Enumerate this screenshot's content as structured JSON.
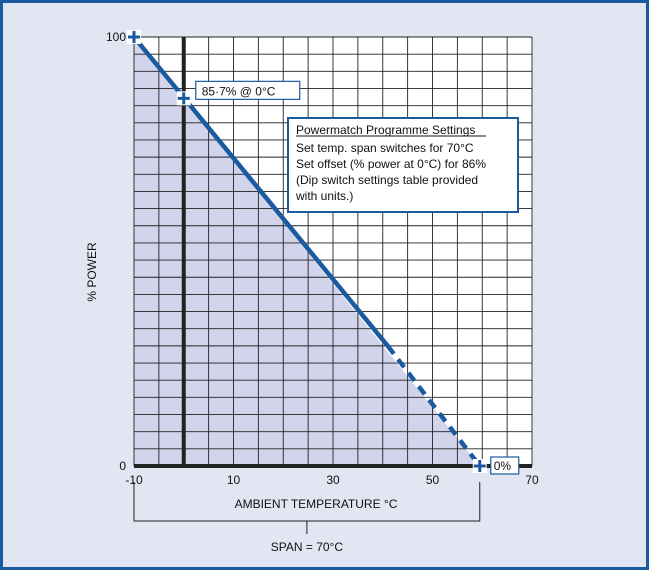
{
  "chart_data": {
    "type": "line",
    "xlabel": "AMBIENT TEMPERATURE °C",
    "ylabel": "% POWER",
    "xlim": [
      -10,
      70
    ],
    "ylim": [
      0,
      100
    ],
    "x_ticks": [
      {
        "value": -10,
        "label": "-10"
      },
      {
        "value": 10,
        "label": "10"
      },
      {
        "value": 30,
        "label": "30"
      },
      {
        "value": 50,
        "label": "50"
      },
      {
        "value": 70,
        "label": "70"
      }
    ],
    "y_ticks": [
      {
        "value": 100,
        "label": "100"
      },
      {
        "value": 0,
        "label": "0"
      }
    ],
    "grid": true,
    "x_grid_step": 5,
    "y_grid_step": 4,
    "reference_line_x": 0,
    "series": [
      {
        "solid": [
          {
            "x": -10,
            "y": 100
          },
          {
            "x": 41,
            "y": 28
          }
        ],
        "dashed": [
          {
            "x": 41,
            "y": 28
          },
          {
            "x": 59.5,
            "y": 0
          }
        ],
        "markers": [
          {
            "x": -10,
            "y": 100
          },
          {
            "x": 0,
            "y": 85.7
          },
          {
            "x": 59.5,
            "y": 0
          }
        ]
      }
    ],
    "annotations": {
      "point_label": "85·7% @ 0°C",
      "end_label": "0%",
      "settings_title": "Powermatch Programme Settings",
      "settings_lines": [
        "Set temp. span switches for 70°C",
        "Set offset (% power at 0°C) for 86%",
        "(Dip switch settings table provided",
        "with units.)"
      ],
      "span_label": "SPAN = 70°C"
    },
    "colors": {
      "line": "#1a5aa0",
      "fill": "#c9cde8",
      "frame": "#1a5aa0",
      "background": "#e2e6f2",
      "plot_background": "#ffffff"
    }
  }
}
